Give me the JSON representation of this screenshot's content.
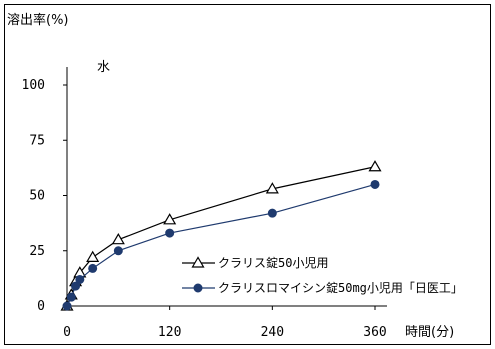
{
  "chart_data": {
    "type": "line",
    "title": "",
    "ylabel": "溶出率(%)",
    "xlabel": "時間(分)",
    "condition": "水",
    "xlim": [
      0,
      360
    ],
    "ylim": [
      0,
      100
    ],
    "xticks": [
      0,
      120,
      240,
      360
    ],
    "yticks": [
      0,
      25,
      50,
      75,
      100
    ],
    "legend_position": "bottom-right",
    "series": [
      {
        "name": "クラリス錠50小児用",
        "marker": "open-triangle",
        "color": "#000000",
        "x": [
          0,
          5,
          10,
          15,
          30,
          60,
          120,
          240,
          360
        ],
        "y": [
          0,
          5,
          11,
          15,
          22,
          30,
          39,
          53,
          63
        ]
      },
      {
        "name": "クラリスロマイシン錠50mg小児用「日医工」",
        "marker": "filled-circle",
        "color": "#1f3a6e",
        "x": [
          0,
          5,
          10,
          15,
          30,
          60,
          120,
          240,
          360
        ],
        "y": [
          0,
          4,
          9,
          12,
          17,
          25,
          33,
          42,
          55
        ]
      }
    ]
  }
}
